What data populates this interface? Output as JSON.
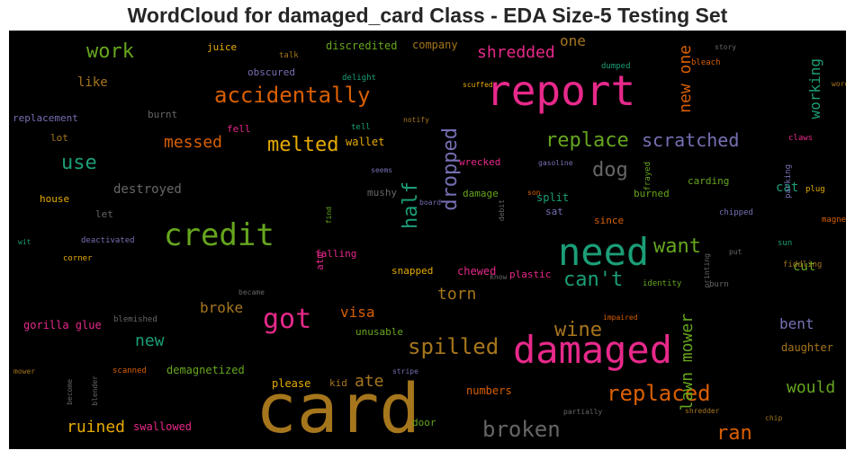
{
  "chart_data": {
    "type": "wordcloud",
    "title": "WordCloud for damaged_card Class - EDA Size-5 Testing Set",
    "words": [
      {
        "text": "card",
        "color": "#a6761d",
        "rot": 0
      },
      {
        "text": "report",
        "color": "#e7298a",
        "rot": 0
      },
      {
        "text": "damaged",
        "color": "#e7298a",
        "rot": 0
      },
      {
        "text": "need",
        "color": "#1b9e77",
        "rot": 0
      },
      {
        "text": "credit",
        "color": "#66a61e",
        "rot": 0
      },
      {
        "text": "accidentally",
        "color": "#d95f02",
        "rot": 0
      },
      {
        "text": "got",
        "color": "#e7298a",
        "rot": 0
      },
      {
        "text": "replaced",
        "color": "#d95f02",
        "rot": 0
      },
      {
        "text": "spilled",
        "color": "#a6761d",
        "rot": 0
      },
      {
        "text": "broken",
        "color": "#666666",
        "rot": 0
      },
      {
        "text": "melted",
        "color": "#e6ab02",
        "rot": 0
      },
      {
        "text": "replace",
        "color": "#66a61e",
        "rot": 0
      },
      {
        "text": "scratched",
        "color": "#7570b3",
        "rot": 0
      },
      {
        "text": "work",
        "color": "#66a61e",
        "rot": 0
      },
      {
        "text": "use",
        "color": "#1b9e77",
        "rot": 0
      },
      {
        "text": "dog",
        "color": "#666666",
        "rot": 0
      },
      {
        "text": "dropped",
        "color": "#7570b3",
        "rot": 90
      },
      {
        "text": "half",
        "color": "#1b9e77",
        "rot": 90
      },
      {
        "text": "wine",
        "color": "#a6761d",
        "rot": 0
      },
      {
        "text": "want",
        "color": "#66a61e",
        "rot": 0
      },
      {
        "text": "can't",
        "color": "#1b9e77",
        "rot": 0
      },
      {
        "text": "ran",
        "color": "#d95f02",
        "rot": 0
      },
      {
        "text": "ruined",
        "color": "#e6ab02",
        "rot": 0
      },
      {
        "text": "ate",
        "color": "#a6761d",
        "rot": 0
      },
      {
        "text": "torn",
        "color": "#a6761d",
        "rot": 0
      },
      {
        "text": "would",
        "color": "#66a61e",
        "rot": 0
      },
      {
        "text": "shredded",
        "color": "#e7298a",
        "rot": 0
      },
      {
        "text": "messed",
        "color": "#d95f02",
        "rot": 0
      },
      {
        "text": "new",
        "color": "#1b9e77",
        "rot": 0
      },
      {
        "text": "new one",
        "color": "#d95f02",
        "rot": 90
      },
      {
        "text": "lawn mower",
        "color": "#66a61e",
        "rot": 90
      },
      {
        "text": "working",
        "color": "#1b9e77",
        "rot": 90
      },
      {
        "text": "visa",
        "color": "#d95f02",
        "rot": 0
      },
      {
        "text": "broke",
        "color": "#a6761d",
        "rot": 0
      },
      {
        "text": "one",
        "color": "#a6761d",
        "rot": 0
      },
      {
        "text": "bent",
        "color": "#7570b3",
        "rot": 0
      },
      {
        "text": "cut",
        "color": "#66a61e",
        "rot": 0
      },
      {
        "text": "cat",
        "color": "#1b9e77",
        "rot": 0
      },
      {
        "text": "chewed",
        "color": "#e7298a",
        "rot": 0
      },
      {
        "text": "split",
        "color": "#1b9e77",
        "rot": 0
      },
      {
        "text": "please",
        "color": "#e6ab02",
        "rot": 0
      },
      {
        "text": "numbers",
        "color": "#d95f02",
        "rot": 0
      },
      {
        "text": "wallet",
        "color": "#e6ab02",
        "rot": 0
      },
      {
        "text": "destroyed",
        "color": "#666666",
        "rot": 0
      },
      {
        "text": "like",
        "color": "#a6761d",
        "rot": 0
      },
      {
        "text": "gorilla glue",
        "color": "#e7298a",
        "rot": 0
      },
      {
        "text": "demagnetized",
        "color": "#66a61e",
        "rot": 0
      },
      {
        "text": "swallowed",
        "color": "#e7298a",
        "rot": 0
      },
      {
        "text": "daughter",
        "color": "#a6761d",
        "rot": 0
      },
      {
        "text": "company",
        "color": "#a6761d",
        "rot": 0
      },
      {
        "text": "discredited",
        "color": "#66a61e",
        "rot": 0
      },
      {
        "text": "juice",
        "color": "#e6ab02",
        "rot": 0
      },
      {
        "text": "obscured",
        "color": "#7570b3",
        "rot": 0
      },
      {
        "text": "replacement",
        "color": "#7570b3",
        "rot": 0
      },
      {
        "text": "lot",
        "color": "#a6761d",
        "rot": 0
      },
      {
        "text": "burnt",
        "color": "#666666",
        "rot": 0
      },
      {
        "text": "fell",
        "color": "#e7298a",
        "rot": 0
      },
      {
        "text": "house",
        "color": "#e6ab02",
        "rot": 0
      },
      {
        "text": "let",
        "color": "#666666",
        "rot": 0
      },
      {
        "text": "falling",
        "color": "#e7298a",
        "rot": 0
      },
      {
        "text": "atm",
        "color": "#e7298a",
        "rot": 90
      },
      {
        "text": "snapped",
        "color": "#e6ab02",
        "rot": 0
      },
      {
        "text": "unusable",
        "color": "#66a61e",
        "rot": 0
      },
      {
        "text": "plastic",
        "color": "#e7298a",
        "rot": 0
      },
      {
        "text": "wrecked",
        "color": "#e7298a",
        "rot": 0
      },
      {
        "text": "damage",
        "color": "#66a61e",
        "rot": 0
      },
      {
        "text": "burned",
        "color": "#66a61e",
        "rot": 0
      },
      {
        "text": "carding",
        "color": "#66a61e",
        "rot": 0
      },
      {
        "text": "since",
        "color": "#d95f02",
        "rot": 0
      },
      {
        "text": "sat",
        "color": "#7570b3",
        "rot": 0
      },
      {
        "text": "mushy",
        "color": "#666666",
        "rot": 0
      },
      {
        "text": "door",
        "color": "#66a61e",
        "rot": 0
      },
      {
        "text": "kid",
        "color": "#a6761d",
        "rot": 0
      },
      {
        "text": "deactivated",
        "color": "#7570b3",
        "rot": 0
      },
      {
        "text": "corner",
        "color": "#e6ab02",
        "rot": 0
      },
      {
        "text": "wit",
        "color": "#1b9e77",
        "rot": 0
      },
      {
        "text": "blemished",
        "color": "#666666",
        "rot": 0
      },
      {
        "text": "scanned",
        "color": "#d95f02",
        "rot": 0
      },
      {
        "text": "mower",
        "color": "#a6761d",
        "rot": 0
      },
      {
        "text": "blender",
        "color": "#666666",
        "rot": 90
      },
      {
        "text": "become",
        "color": "#666666",
        "rot": 90
      },
      {
        "text": "stripe",
        "color": "#7570b3",
        "rot": 0
      },
      {
        "text": "partially",
        "color": "#666666",
        "rot": 0
      },
      {
        "text": "shredder",
        "color": "#a6761d",
        "rot": 0
      },
      {
        "text": "chip",
        "color": "#a6761d",
        "rot": 0
      },
      {
        "text": "impaired",
        "color": "#d95f02",
        "rot": 0
      },
      {
        "text": "identity",
        "color": "#66a61e",
        "rot": 0
      },
      {
        "text": "printing",
        "color": "#666666",
        "rot": 90
      },
      {
        "text": "burn",
        "color": "#666666",
        "rot": 0
      },
      {
        "text": "know",
        "color": "#666666",
        "rot": 0
      },
      {
        "text": "became",
        "color": "#666666",
        "rot": 0
      },
      {
        "text": "fiddling",
        "color": "#a6761d",
        "rot": 0
      },
      {
        "text": "put",
        "color": "#666666",
        "rot": 0
      },
      {
        "text": "chipped",
        "color": "#7570b3",
        "rot": 0
      },
      {
        "text": "sun",
        "color": "#1b9e77",
        "rot": 0
      },
      {
        "text": "magnetic",
        "color": "#d95f02",
        "rot": 0
      },
      {
        "text": "plug",
        "color": "#e6ab02",
        "rot": 0
      },
      {
        "text": "claws",
        "color": "#e7298a",
        "rot": 0
      },
      {
        "text": "parking",
        "color": "#7570b3",
        "rot": 90
      },
      {
        "text": "wore",
        "color": "#a6761d",
        "rot": 0
      },
      {
        "text": "bleach",
        "color": "#d95f02",
        "rot": 0
      },
      {
        "text": "dumped",
        "color": "#1b9e77",
        "rot": 0
      },
      {
        "text": "story",
        "color": "#666666",
        "rot": 0
      },
      {
        "text": "scuffed",
        "color": "#e6ab02",
        "rot": 0
      },
      {
        "text": "delight",
        "color": "#1b9e77",
        "rot": 0
      },
      {
        "text": "talk",
        "color": "#a6761d",
        "rot": 0
      },
      {
        "text": "tell",
        "color": "#1b9e77",
        "rot": 0
      },
      {
        "text": "notify",
        "color": "#a6761d",
        "rot": 0
      },
      {
        "text": "seems",
        "color": "#7570b3",
        "rot": 0
      },
      {
        "text": "gasoline",
        "color": "#7570b3",
        "rot": 0
      },
      {
        "text": "frayed",
        "color": "#66a61e",
        "rot": 90
      },
      {
        "text": "son",
        "color": "#d95f02",
        "rot": 0
      },
      {
        "text": "debit",
        "color": "#666666",
        "rot": 90
      },
      {
        "text": "board",
        "color": "#7570b3",
        "rot": 0
      },
      {
        "text": "find",
        "color": "#66a61e",
        "rot": 90
      }
    ]
  }
}
